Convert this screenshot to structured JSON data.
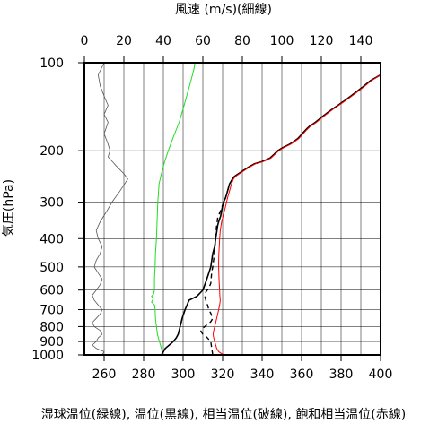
{
  "chart_data": {
    "type": "line",
    "title_top": "風速 (m/s)(細線)",
    "xlabel_bottom": "湿球温位(緑線), 温位(黒線), 相当温位(破線), 飽和相当温位(赤線)",
    "ylabel": "気圧(hPa)",
    "y_axis": {
      "scale": "log",
      "lim": [
        1000,
        100
      ],
      "ticks": [
        100,
        200,
        300,
        400,
        500,
        600,
        700,
        800,
        900,
        1000
      ]
    },
    "x_bottom": {
      "lim": [
        250,
        400
      ],
      "ticks": [
        260,
        280,
        300,
        320,
        340,
        360,
        380,
        400
      ],
      "unit": "K"
    },
    "x_top": {
      "lim": [
        0,
        150
      ],
      "ticks": [
        0,
        20,
        40,
        60,
        80,
        100,
        120,
        140
      ],
      "unit": "m/s"
    },
    "grid": true,
    "series": [
      {
        "key": "wind",
        "axis": "top",
        "color": "#555555",
        "width": 0.8,
        "dash": "",
        "points": [
          [
            9,
            1000
          ],
          [
            10,
            975
          ],
          [
            6,
            950
          ],
          [
            4,
            925
          ],
          [
            6,
            900
          ],
          [
            7,
            875
          ],
          [
            9,
            850
          ],
          [
            8,
            825
          ],
          [
            5,
            800
          ],
          [
            4,
            775
          ],
          [
            6,
            750
          ],
          [
            8,
            725
          ],
          [
            9,
            700
          ],
          [
            7,
            675
          ],
          [
            5,
            650
          ],
          [
            4,
            625
          ],
          [
            6,
            600
          ],
          [
            8,
            575
          ],
          [
            9,
            550
          ],
          [
            7,
            525
          ],
          [
            5,
            500
          ],
          [
            6,
            475
          ],
          [
            8,
            450
          ],
          [
            9,
            425
          ],
          [
            7,
            400
          ],
          [
            6,
            375
          ],
          [
            8,
            350
          ],
          [
            11,
            325
          ],
          [
            14,
            300
          ],
          [
            18,
            275
          ],
          [
            22,
            250
          ],
          [
            20,
            240
          ],
          [
            16,
            225
          ],
          [
            12,
            210
          ],
          [
            13,
            200
          ],
          [
            12,
            190
          ],
          [
            10,
            175
          ],
          [
            12,
            160
          ],
          [
            10,
            150
          ],
          [
            12,
            140
          ],
          [
            10,
            130
          ],
          [
            8,
            120
          ],
          [
            7,
            110
          ],
          [
            10,
            100
          ]
        ]
      },
      {
        "key": "theta_w",
        "axis": "bottom",
        "color": "#22dd22",
        "width": 1.0,
        "dash": "",
        "points": [
          [
            290,
            1000
          ],
          [
            289,
            950
          ],
          [
            288,
            900
          ],
          [
            287,
            850
          ],
          [
            286.5,
            800
          ],
          [
            286,
            750
          ],
          [
            285.8,
            700
          ],
          [
            285.5,
            675
          ],
          [
            284,
            660
          ],
          [
            284.5,
            650
          ],
          [
            285,
            640
          ],
          [
            284,
            630
          ],
          [
            285,
            620
          ],
          [
            285.5,
            600
          ],
          [
            285.5,
            550
          ],
          [
            285.8,
            500
          ],
          [
            286,
            450
          ],
          [
            286.5,
            400
          ],
          [
            286.8,
            350
          ],
          [
            287.2,
            300
          ],
          [
            287.8,
            260
          ],
          [
            289,
            240
          ],
          [
            290.5,
            220
          ],
          [
            292.5,
            200
          ],
          [
            295,
            180
          ],
          [
            298,
            160
          ],
          [
            300.5,
            140
          ],
          [
            302.5,
            125
          ],
          [
            304,
            115
          ],
          [
            305.5,
            105
          ],
          [
            306,
            100
          ]
        ]
      },
      {
        "key": "theta",
        "axis": "bottom",
        "color": "#000000",
        "width": 1.6,
        "dash": "",
        "points": [
          [
            289,
            1000
          ],
          [
            290,
            975
          ],
          [
            291,
            950
          ],
          [
            293,
            925
          ],
          [
            295,
            900
          ],
          [
            296.5,
            875
          ],
          [
            297.5,
            850
          ],
          [
            298.5,
            800
          ],
          [
            299.5,
            750
          ],
          [
            301,
            700
          ],
          [
            302,
            675
          ],
          [
            303,
            650
          ],
          [
            305,
            640
          ],
          [
            307,
            630
          ],
          [
            308,
            620
          ],
          [
            309,
            610
          ],
          [
            310,
            600
          ],
          [
            311,
            575
          ],
          [
            312,
            550
          ],
          [
            313,
            525
          ],
          [
            314,
            500
          ],
          [
            314.5,
            475
          ],
          [
            315,
            450
          ],
          [
            316,
            425
          ],
          [
            316.5,
            400
          ],
          [
            317,
            380
          ],
          [
            317.5,
            360
          ],
          [
            318,
            350
          ],
          [
            319,
            335
          ],
          [
            319.5,
            320
          ],
          [
            320.5,
            300
          ],
          [
            321.5,
            290
          ],
          [
            322.5,
            275
          ],
          [
            323.5,
            260
          ],
          [
            325,
            250
          ],
          [
            326,
            245
          ],
          [
            328,
            240
          ],
          [
            330,
            235
          ],
          [
            333,
            228
          ],
          [
            336,
            222
          ],
          [
            340,
            218
          ],
          [
            342,
            215
          ],
          [
            344,
            212
          ],
          [
            346,
            206
          ],
          [
            348,
            200
          ],
          [
            350,
            196
          ],
          [
            352,
            193
          ],
          [
            354,
            190
          ],
          [
            356,
            186
          ],
          [
            358,
            182
          ],
          [
            360,
            176
          ],
          [
            362,
            170
          ],
          [
            364,
            165
          ],
          [
            367,
            160
          ],
          [
            371,
            152
          ],
          [
            375,
            145
          ],
          [
            379,
            139
          ],
          [
            383,
            133
          ],
          [
            387,
            127
          ],
          [
            391,
            121
          ],
          [
            395,
            115
          ],
          [
            400,
            110
          ]
        ]
      },
      {
        "key": "theta_e",
        "axis": "bottom",
        "color": "#000000",
        "width": 1.4,
        "dash": "5,4",
        "points": [
          [
            315,
            1000
          ],
          [
            314.5,
            950
          ],
          [
            314,
            900
          ],
          [
            312,
            870
          ],
          [
            310,
            850
          ],
          [
            309,
            830
          ],
          [
            310,
            810
          ],
          [
            312,
            790
          ],
          [
            314,
            770
          ],
          [
            315,
            750
          ],
          [
            314,
            720
          ],
          [
            313,
            700
          ],
          [
            312.5,
            680
          ],
          [
            311.5,
            650
          ],
          [
            311,
            630
          ],
          [
            311.5,
            610
          ],
          [
            313,
            590
          ],
          [
            314,
            570
          ],
          [
            314.2,
            550
          ],
          [
            314.5,
            520
          ],
          [
            315,
            500
          ],
          [
            315.5,
            470
          ],
          [
            316,
            440
          ],
          [
            316.3,
            410
          ],
          [
            316.6,
            380
          ],
          [
            317,
            360
          ],
          [
            317.5,
            340
          ],
          [
            319,
            320
          ],
          [
            320.5,
            300
          ],
          [
            321.5,
            290
          ],
          [
            322.5,
            275
          ],
          [
            323.5,
            260
          ],
          [
            325,
            250
          ],
          [
            326,
            245
          ],
          [
            328,
            240
          ],
          [
            330,
            235
          ],
          [
            333,
            228
          ],
          [
            336,
            222
          ],
          [
            340,
            218
          ],
          [
            342,
            215
          ],
          [
            344,
            212
          ],
          [
            346,
            206
          ],
          [
            348,
            200
          ],
          [
            350,
            196
          ],
          [
            352,
            193
          ],
          [
            354,
            190
          ],
          [
            356,
            186
          ],
          [
            358,
            182
          ],
          [
            360,
            176
          ],
          [
            362,
            170
          ],
          [
            364,
            165
          ],
          [
            367,
            160
          ],
          [
            371,
            152
          ],
          [
            375,
            145
          ],
          [
            379,
            139
          ],
          [
            383,
            133
          ],
          [
            387,
            127
          ],
          [
            391,
            121
          ],
          [
            395,
            115
          ],
          [
            400,
            110
          ]
        ]
      },
      {
        "key": "theta_es",
        "axis": "bottom",
        "color": "#ff0000",
        "width": 1.0,
        "dash": "",
        "points": [
          [
            323,
            1000
          ],
          [
            320,
            995
          ],
          [
            318,
            975
          ],
          [
            317,
            950
          ],
          [
            316.5,
            925
          ],
          [
            316,
            900
          ],
          [
            315.5,
            875
          ],
          [
            315.2,
            850
          ],
          [
            315.5,
            825
          ],
          [
            316,
            800
          ],
          [
            316.5,
            775
          ],
          [
            317,
            750
          ],
          [
            317.5,
            725
          ],
          [
            318,
            700
          ],
          [
            318.5,
            675
          ],
          [
            318.8,
            650
          ],
          [
            318.6,
            625
          ],
          [
            318.5,
            600
          ],
          [
            318.3,
            575
          ],
          [
            318.2,
            550
          ],
          [
            318.1,
            525
          ],
          [
            318,
            500
          ],
          [
            318,
            475
          ],
          [
            318.1,
            450
          ],
          [
            318.3,
            425
          ],
          [
            318.5,
            400
          ],
          [
            318.8,
            375
          ],
          [
            319.5,
            350
          ],
          [
            320.5,
            330
          ],
          [
            321.5,
            310
          ],
          [
            322.5,
            290
          ],
          [
            323.5,
            275
          ],
          [
            324.5,
            260
          ],
          [
            325.5,
            250
          ],
          [
            326.5,
            245
          ],
          [
            328.5,
            240
          ],
          [
            330.5,
            235
          ],
          [
            333.5,
            228
          ],
          [
            336.5,
            222
          ],
          [
            340.5,
            218
          ],
          [
            342.5,
            215
          ],
          [
            344.5,
            212
          ],
          [
            346.5,
            206
          ],
          [
            348.5,
            200
          ],
          [
            350.5,
            196
          ],
          [
            352.5,
            193
          ],
          [
            354.5,
            190
          ],
          [
            356.5,
            186
          ],
          [
            358.5,
            182
          ],
          [
            360.5,
            176
          ],
          [
            362.5,
            170
          ],
          [
            364.5,
            165
          ],
          [
            367.5,
            160
          ],
          [
            371.5,
            152
          ],
          [
            375.5,
            145
          ],
          [
            379.5,
            139
          ],
          [
            383.5,
            133
          ],
          [
            387.5,
            127
          ],
          [
            391.5,
            121
          ],
          [
            395.5,
            115
          ],
          [
            400,
            110
          ]
        ]
      }
    ]
  }
}
